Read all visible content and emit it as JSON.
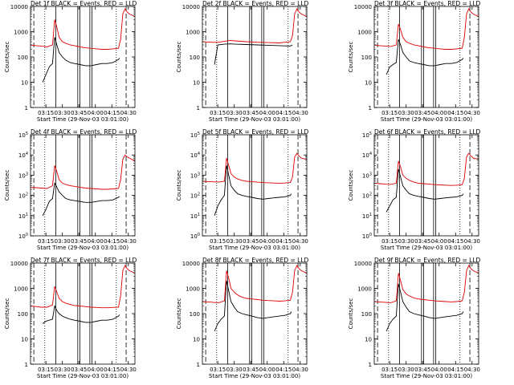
{
  "colors": {
    "events": "#000000",
    "lld": "#e00000",
    "axis": "#000000"
  },
  "figure": {
    "xlabel": "Start Time (29-Nov-03 03:01:00)",
    "ylabel": "Counts/sec",
    "xticks": [
      "03:15",
      "03:30",
      "03:45",
      "04:00",
      "04:15",
      "04:30"
    ]
  },
  "chart_data": [
    {
      "type": "line",
      "title": "Det 1f BLACK = Events, RED = LLD",
      "log_y": true,
      "ylim": [
        1,
        10000
      ],
      "ytick_style": "decimal",
      "ytick_labels": [
        "1",
        "10",
        "100",
        "1000",
        "10000"
      ],
      "x_minutes_range": [
        0,
        95
      ],
      "series": [
        {
          "name": "Events",
          "color": "#000000",
          "x": [
            10,
            11,
            14,
            17,
            18,
            20,
            22,
            24,
            26,
            29,
            32,
            36,
            40,
            45,
            50,
            55,
            60,
            65,
            70,
            75,
            80,
            81
          ],
          "y": [
            null,
            10,
            20,
            40,
            45,
            55,
            600,
            300,
            150,
            100,
            75,
            60,
            55,
            50,
            45,
            45,
            50,
            55,
            55,
            60,
            80,
            90
          ]
        },
        {
          "name": "LLD",
          "color": "#e00000",
          "x": [
            0,
            5,
            10,
            15,
            18,
            20,
            22,
            24,
            26,
            29,
            32,
            36,
            40,
            45,
            50,
            55,
            60,
            65,
            70,
            75,
            80,
            82,
            84,
            86,
            88,
            90,
            95
          ],
          "y": [
            300,
            280,
            270,
            250,
            280,
            300,
            3000,
            1500,
            600,
            400,
            350,
            300,
            280,
            250,
            230,
            220,
            210,
            200,
            200,
            210,
            220,
            500,
            5000,
            8000,
            6000,
            5000,
            4000
          ]
        }
      ]
    },
    {
      "type": "line",
      "title": "Det 2f BLACK = Events, RED = LLD",
      "log_y": true,
      "ylim": [
        1,
        10000
      ],
      "ytick_style": "decimal",
      "ytick_labels": [
        "1",
        "10",
        "100",
        "1000",
        "10000"
      ],
      "x_minutes_range": [
        0,
        95
      ],
      "series": [
        {
          "name": "Events",
          "color": "#000000",
          "x": [
            10,
            11,
            14,
            20,
            25,
            30,
            40,
            50,
            60,
            70,
            80,
            82
          ],
          "y": [
            null,
            50,
            300,
            320,
            330,
            320,
            310,
            300,
            290,
            280,
            270,
            300
          ]
        },
        {
          "name": "LLD",
          "color": "#e00000",
          "x": [
            0,
            5,
            10,
            15,
            20,
            25,
            30,
            40,
            50,
            60,
            70,
            75,
            80,
            82,
            84,
            86,
            88,
            90,
            95
          ],
          "y": [
            400,
            390,
            380,
            380,
            420,
            450,
            430,
            400,
            380,
            370,
            360,
            380,
            400,
            700,
            5000,
            8000,
            6000,
            5000,
            4000
          ]
        }
      ]
    },
    {
      "type": "line",
      "title": "Det 3f BLACK = Events, RED = LLD",
      "log_y": true,
      "ylim": [
        1,
        10000
      ],
      "ytick_style": "decimal",
      "ytick_labels": [
        "1",
        "10",
        "100",
        "1000",
        "10000"
      ],
      "x_minutes_range": [
        0,
        95
      ],
      "series": [
        {
          "name": "Events",
          "color": "#000000",
          "x": [
            10,
            11,
            14,
            17,
            20,
            22,
            24,
            26,
            29,
            32,
            36,
            40,
            45,
            50,
            55,
            60,
            65,
            70,
            75,
            80,
            81
          ],
          "y": [
            null,
            20,
            40,
            50,
            60,
            500,
            300,
            150,
            100,
            70,
            60,
            55,
            50,
            45,
            45,
            50,
            55,
            55,
            60,
            80,
            90
          ]
        },
        {
          "name": "LLD",
          "color": "#e00000",
          "x": [
            0,
            5,
            10,
            15,
            20,
            22,
            24,
            26,
            29,
            32,
            36,
            40,
            45,
            50,
            55,
            60,
            65,
            70,
            75,
            80,
            82,
            84,
            86,
            88,
            90,
            95
          ],
          "y": [
            300,
            280,
            270,
            260,
            300,
            2000,
            1200,
            600,
            400,
            350,
            300,
            280,
            250,
            230,
            220,
            210,
            200,
            200,
            210,
            220,
            600,
            5000,
            8000,
            6000,
            5000,
            4000
          ]
        }
      ]
    },
    {
      "type": "line",
      "title": "Det 4f BLACK = Events, RED = LLD",
      "log_y": true,
      "ylim": [
        1,
        100000
      ],
      "ytick_style": "power",
      "ytick_labels": [
        "10^0",
        "10^1",
        "10^2",
        "10^3",
        "10^4",
        "10^5"
      ],
      "x_minutes_range": [
        0,
        95
      ],
      "series": [
        {
          "name": "Events",
          "color": "#000000",
          "x": [
            10,
            11,
            14,
            17,
            20,
            22,
            24,
            26,
            29,
            32,
            36,
            40,
            45,
            50,
            55,
            60,
            65,
            70,
            75,
            80,
            81
          ],
          "y": [
            null,
            10,
            20,
            50,
            70,
            400,
            250,
            150,
            100,
            70,
            60,
            55,
            50,
            45,
            45,
            50,
            55,
            55,
            60,
            80,
            90
          ]
        },
        {
          "name": "LLD",
          "color": "#e00000",
          "x": [
            0,
            5,
            10,
            15,
            20,
            22,
            24,
            26,
            29,
            32,
            36,
            40,
            45,
            50,
            55,
            60,
            65,
            70,
            75,
            80,
            82,
            84,
            86,
            88,
            90,
            95
          ],
          "y": [
            250,
            240,
            230,
            220,
            300,
            3000,
            1500,
            600,
            400,
            350,
            300,
            280,
            250,
            230,
            220,
            210,
            200,
            200,
            210,
            220,
            600,
            6000,
            10000,
            8000,
            7000,
            5000
          ]
        }
      ]
    },
    {
      "type": "line",
      "title": "Det 5f BLACK = Events, RED = LLD",
      "log_y": true,
      "ylim": [
        1,
        100000
      ],
      "ytick_style": "power",
      "ytick_labels": [
        "10^0",
        "10^1",
        "10^2",
        "10^3",
        "10^4",
        "10^5"
      ],
      "x_minutes_range": [
        0,
        95
      ],
      "series": [
        {
          "name": "Events",
          "color": "#000000",
          "x": [
            10,
            11,
            14,
            17,
            20,
            22,
            24,
            26,
            29,
            32,
            36,
            40,
            45,
            50,
            55,
            60,
            65,
            70,
            75,
            80,
            81
          ],
          "y": [
            null,
            10,
            30,
            60,
            100,
            3000,
            1000,
            300,
            180,
            120,
            100,
            90,
            80,
            70,
            65,
            70,
            75,
            80,
            85,
            100,
            120
          ]
        },
        {
          "name": "LLD",
          "color": "#e00000",
          "x": [
            0,
            5,
            10,
            15,
            20,
            22,
            24,
            26,
            29,
            32,
            36,
            40,
            45,
            50,
            55,
            60,
            65,
            70,
            75,
            80,
            82,
            84,
            86,
            88,
            90,
            95
          ],
          "y": [
            500,
            480,
            470,
            460,
            500,
            7000,
            3000,
            1200,
            800,
            650,
            550,
            500,
            480,
            450,
            430,
            420,
            410,
            400,
            410,
            430,
            800,
            8000,
            12000,
            9000,
            7000,
            6000
          ]
        }
      ]
    },
    {
      "type": "line",
      "title": "Det 6f BLACK = Events, RED = LLD",
      "log_y": true,
      "ylim": [
        1,
        100000
      ],
      "ytick_style": "power",
      "ytick_labels": [
        "10^0",
        "10^1",
        "10^2",
        "10^3",
        "10^4",
        "10^5"
      ],
      "x_minutes_range": [
        0,
        95
      ],
      "series": [
        {
          "name": "Events",
          "color": "#000000",
          "x": [
            10,
            11,
            14,
            17,
            20,
            22,
            24,
            26,
            29,
            32,
            36,
            40,
            45,
            50,
            55,
            60,
            65,
            70,
            75,
            80,
            81
          ],
          "y": [
            null,
            15,
            30,
            60,
            80,
            2000,
            800,
            300,
            180,
            120,
            100,
            90,
            80,
            70,
            65,
            70,
            75,
            80,
            85,
            100,
            120
          ]
        },
        {
          "name": "LLD",
          "color": "#e00000",
          "x": [
            0,
            5,
            10,
            15,
            20,
            22,
            24,
            26,
            29,
            32,
            36,
            40,
            45,
            50,
            55,
            60,
            65,
            70,
            75,
            80,
            82,
            84,
            86,
            88,
            90,
            95
          ],
          "y": [
            400,
            380,
            360,
            350,
            400,
            5000,
            2500,
            1000,
            700,
            550,
            450,
            400,
            380,
            360,
            340,
            330,
            320,
            310,
            320,
            340,
            700,
            8000,
            12000,
            9000,
            7000,
            6000
          ]
        }
      ]
    },
    {
      "type": "line",
      "title": "Det 7f BLACK = Events, RED = LLD",
      "log_y": true,
      "ylim": [
        1,
        10000
      ],
      "ytick_style": "decimal",
      "ytick_labels": [
        "1",
        "10",
        "100",
        "1000",
        "10000"
      ],
      "x_minutes_range": [
        0,
        95
      ],
      "series": [
        {
          "name": "Events",
          "color": "#000000",
          "x": [
            10,
            11,
            14,
            17,
            20,
            22,
            24,
            26,
            29,
            32,
            36,
            40,
            45,
            50,
            55,
            60,
            65,
            70,
            75,
            80,
            81
          ],
          "y": [
            null,
            40,
            50,
            55,
            60,
            200,
            130,
            100,
            80,
            70,
            60,
            55,
            50,
            45,
            45,
            50,
            55,
            55,
            60,
            80,
            90
          ]
        },
        {
          "name": "LLD",
          "color": "#e00000",
          "x": [
            0,
            5,
            10,
            15,
            20,
            22,
            24,
            26,
            29,
            32,
            36,
            40,
            45,
            50,
            55,
            60,
            65,
            70,
            75,
            80,
            82,
            84,
            86,
            88,
            90,
            95
          ],
          "y": [
            200,
            190,
            180,
            180,
            220,
            1200,
            700,
            400,
            300,
            260,
            230,
            210,
            200,
            190,
            180,
            175,
            170,
            170,
            175,
            180,
            500,
            5000,
            8000,
            6000,
            5000,
            4000
          ]
        }
      ]
    },
    {
      "type": "line",
      "title": "Det 8f BLACK = Events, RED = LLD",
      "log_y": true,
      "ylim": [
        1,
        10000
      ],
      "ytick_style": "decimal",
      "ytick_labels": [
        "1",
        "10",
        "100",
        "1000",
        "10000"
      ],
      "x_minutes_range": [
        0,
        95
      ],
      "series": [
        {
          "name": "Events",
          "color": "#000000",
          "x": [
            10,
            11,
            14,
            17,
            20,
            22,
            24,
            26,
            29,
            32,
            36,
            40,
            45,
            50,
            55,
            60,
            65,
            70,
            75,
            80,
            81
          ],
          "y": [
            null,
            20,
            40,
            60,
            80,
            2000,
            800,
            300,
            180,
            120,
            100,
            90,
            80,
            70,
            65,
            70,
            75,
            80,
            85,
            100,
            120
          ]
        },
        {
          "name": "LLD",
          "color": "#e00000",
          "x": [
            0,
            5,
            10,
            15,
            20,
            22,
            24,
            26,
            29,
            32,
            36,
            40,
            45,
            50,
            55,
            60,
            65,
            70,
            75,
            80,
            82,
            84,
            86,
            88,
            90,
            95
          ],
          "y": [
            300,
            290,
            280,
            270,
            320,
            5000,
            2500,
            1000,
            700,
            550,
            450,
            400,
            380,
            360,
            340,
            330,
            320,
            310,
            320,
            340,
            700,
            5000,
            8000,
            6000,
            5000,
            4000
          ]
        }
      ]
    },
    {
      "type": "line",
      "title": "Det 9f BLACK = Events, RED = LLD",
      "log_y": true,
      "ylim": [
        1,
        10000
      ],
      "ytick_style": "decimal",
      "ytick_labels": [
        "1",
        "10",
        "100",
        "1000",
        "10000"
      ],
      "x_minutes_range": [
        0,
        95
      ],
      "series": [
        {
          "name": "Events",
          "color": "#000000",
          "x": [
            10,
            11,
            14,
            17,
            20,
            22,
            24,
            26,
            29,
            32,
            36,
            40,
            45,
            50,
            55,
            60,
            65,
            70,
            75,
            80,
            81
          ],
          "y": [
            null,
            20,
            40,
            60,
            80,
            1500,
            700,
            300,
            180,
            120,
            100,
            90,
            80,
            70,
            65,
            70,
            75,
            80,
            85,
            100,
            120
          ]
        },
        {
          "name": "LLD",
          "color": "#e00000",
          "x": [
            0,
            5,
            10,
            15,
            20,
            22,
            24,
            26,
            29,
            32,
            36,
            40,
            45,
            50,
            55,
            60,
            65,
            70,
            75,
            80,
            82,
            84,
            86,
            88,
            90,
            95
          ],
          "y": [
            300,
            290,
            280,
            270,
            320,
            4000,
            2000,
            900,
            600,
            500,
            420,
            380,
            360,
            340,
            320,
            310,
            300,
            290,
            300,
            320,
            700,
            5000,
            8000,
            6000,
            5000,
            4000
          ]
        }
      ]
    }
  ]
}
